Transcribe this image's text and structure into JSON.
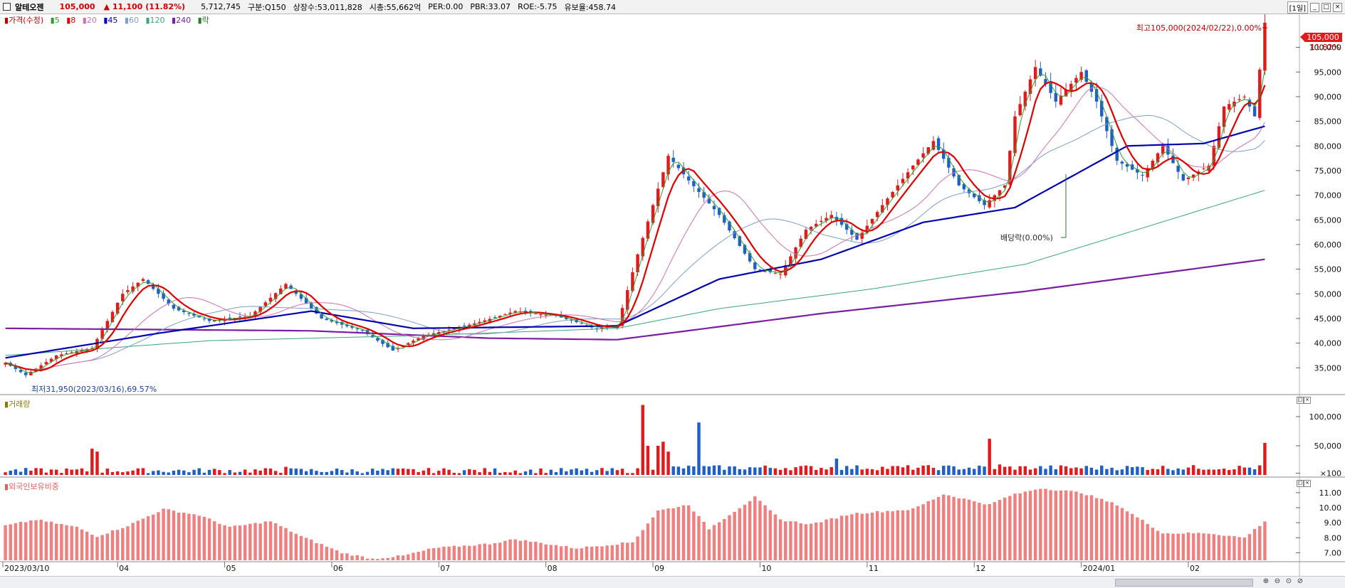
{
  "header": {
    "stock_name": "알테오젠",
    "price": "105,000",
    "change": "▲ 11,100",
    "change_pct": "(11.82%)",
    "volume": "5,712,745",
    "sector": "구분:Q150",
    "shares": "상장수:53,011,828",
    "market_cap": "시총:55,662억",
    "per": "PER:0.00",
    "pbr": "PBR:33.07",
    "roe": "ROE:-5.75",
    "reserve": "유보율:458.74",
    "period": "[1일]"
  },
  "legends": {
    "price": [
      "가격(수정)",
      "5",
      "8",
      "20",
      "45",
      "60",
      "120",
      "240",
      "락"
    ],
    "volume": "거래량",
    "foreign": "외국인보유비중"
  },
  "annotations": {
    "high": "최고105,000(2024/02/22),0.00%",
    "low": "최저31,950(2023/03/16),69.57%",
    "dividend": "배당락(0.00%)",
    "price_tag": "105,000",
    "pct_tag": "11.82%"
  },
  "colors": {
    "up": "#e31a1c",
    "down": "#1f5fc8",
    "ma5": "#2ca02c",
    "ma8": "#e00000",
    "ma20": "#d070b0",
    "ma45": "#0000b0",
    "ma60": "#7aa0c8",
    "ma120": "#3aa57a",
    "ma240": "#7a1fa2",
    "foreign": "#f08080"
  },
  "chart_data": [
    {
      "type": "candlestick",
      "title": "알테오젠 가격(수정)",
      "x_ticks": [
        "2023/03/10",
        "04",
        "05",
        "06",
        "07",
        "08",
        "09",
        "10",
        "11",
        "12",
        "2024/01",
        "02"
      ],
      "y_ticks": [
        35000,
        40000,
        45000,
        50000,
        55000,
        60000,
        65000,
        70000,
        75000,
        80000,
        85000,
        90000,
        95000,
        100000
      ],
      "ylim": [
        31000,
        106000
      ],
      "keypoints": [
        {
          "t": 0,
          "close": 36000
        },
        {
          "t": 4,
          "close": 33500
        },
        {
          "t": 10,
          "close": 37500
        },
        {
          "t": 17,
          "close": 39000
        },
        {
          "t": 23,
          "close": 50000
        },
        {
          "t": 27,
          "close": 53000
        },
        {
          "t": 33,
          "close": 47000
        },
        {
          "t": 40,
          "close": 44500
        },
        {
          "t": 48,
          "close": 45500
        },
        {
          "t": 55,
          "close": 52000
        },
        {
          "t": 62,
          "close": 45000
        },
        {
          "t": 70,
          "close": 42500
        },
        {
          "t": 76,
          "close": 38500
        },
        {
          "t": 82,
          "close": 41500
        },
        {
          "t": 92,
          "close": 44000
        },
        {
          "t": 100,
          "close": 46500
        },
        {
          "t": 108,
          "close": 45500
        },
        {
          "t": 116,
          "close": 43000
        },
        {
          "t": 120,
          "close": 43500
        },
        {
          "t": 124,
          "close": 58000
        },
        {
          "t": 130,
          "close": 78000
        },
        {
          "t": 134,
          "close": 73000
        },
        {
          "t": 140,
          "close": 66000
        },
        {
          "t": 147,
          "close": 55000
        },
        {
          "t": 152,
          "close": 54000
        },
        {
          "t": 157,
          "close": 63000
        },
        {
          "t": 162,
          "close": 66000
        },
        {
          "t": 167,
          "close": 61000
        },
        {
          "t": 172,
          "close": 68000
        },
        {
          "t": 178,
          "close": 76000
        },
        {
          "t": 182,
          "close": 81000
        },
        {
          "t": 187,
          "close": 72000
        },
        {
          "t": 192,
          "close": 68000
        },
        {
          "t": 196,
          "close": 72000
        },
        {
          "t": 198,
          "close": 86000
        },
        {
          "t": 202,
          "close": 96000
        },
        {
          "t": 206,
          "close": 89000
        },
        {
          "t": 211,
          "close": 95000
        },
        {
          "t": 214,
          "close": 89000
        },
        {
          "t": 218,
          "close": 77000
        },
        {
          "t": 223,
          "close": 74000
        },
        {
          "t": 227,
          "close": 80000
        },
        {
          "t": 231,
          "close": 73000
        },
        {
          "t": 236,
          "close": 76000
        },
        {
          "t": 239,
          "close": 88000
        },
        {
          "t": 243,
          "close": 90000
        },
        {
          "t": 245,
          "close": 86000
        },
        {
          "t": 247,
          "close": 105000
        }
      ],
      "moving_averages": {
        "ma240": [
          {
            "t": 0,
            "v": 43000
          },
          {
            "t": 60,
            "v": 42500
          },
          {
            "t": 95,
            "v": 41000
          },
          {
            "t": 120,
            "v": 40700
          },
          {
            "t": 130,
            "v": 42000
          },
          {
            "t": 160,
            "v": 46000
          },
          {
            "t": 200,
            "v": 50500
          },
          {
            "t": 247,
            "v": 57000
          }
        ],
        "ma120": [
          {
            "t": 0,
            "v": 37500
          },
          {
            "t": 40,
            "v": 40500
          },
          {
            "t": 80,
            "v": 41500
          },
          {
            "t": 120,
            "v": 43000
          },
          {
            "t": 140,
            "v": 47000
          },
          {
            "t": 170,
            "v": 51000
          },
          {
            "t": 200,
            "v": 56000
          },
          {
            "t": 247,
            "v": 71000
          }
        ],
        "ma45": [
          {
            "t": 0,
            "v": 37000
          },
          {
            "t": 30,
            "v": 42000
          },
          {
            "t": 60,
            "v": 46500
          },
          {
            "t": 80,
            "v": 43000
          },
          {
            "t": 120,
            "v": 43500
          },
          {
            "t": 140,
            "v": 53000
          },
          {
            "t": 160,
            "v": 57000
          },
          {
            "t": 180,
            "v": 64500
          },
          {
            "t": 198,
            "v": 67500
          },
          {
            "t": 220,
            "v": 80000
          },
          {
            "t": 235,
            "v": 80500
          },
          {
            "t": 247,
            "v": 84000
          }
        ]
      }
    },
    {
      "type": "bar",
      "title": "거래량",
      "y_ticks": [
        "100,000",
        "50,000",
        "×100"
      ],
      "unit": "×100",
      "spikes": [
        {
          "t": 17,
          "v": 45000
        },
        {
          "t": 18,
          "v": 40000
        },
        {
          "t": 55,
          "v": 14000
        },
        {
          "t": 125,
          "v": 120000
        },
        {
          "t": 126,
          "v": 50000
        },
        {
          "t": 128,
          "v": 50000
        },
        {
          "t": 129,
          "v": 57000
        },
        {
          "t": 130,
          "v": 40000
        },
        {
          "t": 136,
          "v": 90000
        },
        {
          "t": 163,
          "v": 28000
        },
        {
          "t": 193,
          "v": 62000
        },
        {
          "t": 195,
          "v": 18000
        },
        {
          "t": 247,
          "v": 55000
        }
      ]
    },
    {
      "type": "bar",
      "title": "외국인보유비중",
      "y_ticks": [
        "7.00",
        "8.00",
        "9.00",
        "10.00",
        "11.00"
      ],
      "ylim": [
        6.5,
        11.8
      ],
      "keypoints": [
        {
          "t": 0,
          "v": 8.8
        },
        {
          "t": 6,
          "v": 9.2
        },
        {
          "t": 14,
          "v": 8.7
        },
        {
          "t": 18,
          "v": 8.1
        },
        {
          "t": 24,
          "v": 8.8
        },
        {
          "t": 31,
          "v": 9.9
        },
        {
          "t": 38,
          "v": 9.5
        },
        {
          "t": 44,
          "v": 8.7
        },
        {
          "t": 52,
          "v": 9.1
        },
        {
          "t": 58,
          "v": 8.1
        },
        {
          "t": 66,
          "v": 7.0
        },
        {
          "t": 72,
          "v": 6.6
        },
        {
          "t": 78,
          "v": 6.8
        },
        {
          "t": 84,
          "v": 7.3
        },
        {
          "t": 95,
          "v": 7.6
        },
        {
          "t": 100,
          "v": 7.9
        },
        {
          "t": 112,
          "v": 7.3
        },
        {
          "t": 123,
          "v": 7.7
        },
        {
          "t": 128,
          "v": 9.8
        },
        {
          "t": 134,
          "v": 10.2
        },
        {
          "t": 138,
          "v": 8.6
        },
        {
          "t": 147,
          "v": 10.7
        },
        {
          "t": 152,
          "v": 9.2
        },
        {
          "t": 158,
          "v": 8.9
        },
        {
          "t": 166,
          "v": 9.6
        },
        {
          "t": 178,
          "v": 9.9
        },
        {
          "t": 184,
          "v": 10.9
        },
        {
          "t": 193,
          "v": 10.2
        },
        {
          "t": 197,
          "v": 10.8
        },
        {
          "t": 203,
          "v": 11.3
        },
        {
          "t": 211,
          "v": 11.0
        },
        {
          "t": 218,
          "v": 10.2
        },
        {
          "t": 227,
          "v": 8.3
        },
        {
          "t": 236,
          "v": 8.3
        },
        {
          "t": 243,
          "v": 8.0
        },
        {
          "t": 247,
          "v": 9.1
        }
      ]
    }
  ]
}
